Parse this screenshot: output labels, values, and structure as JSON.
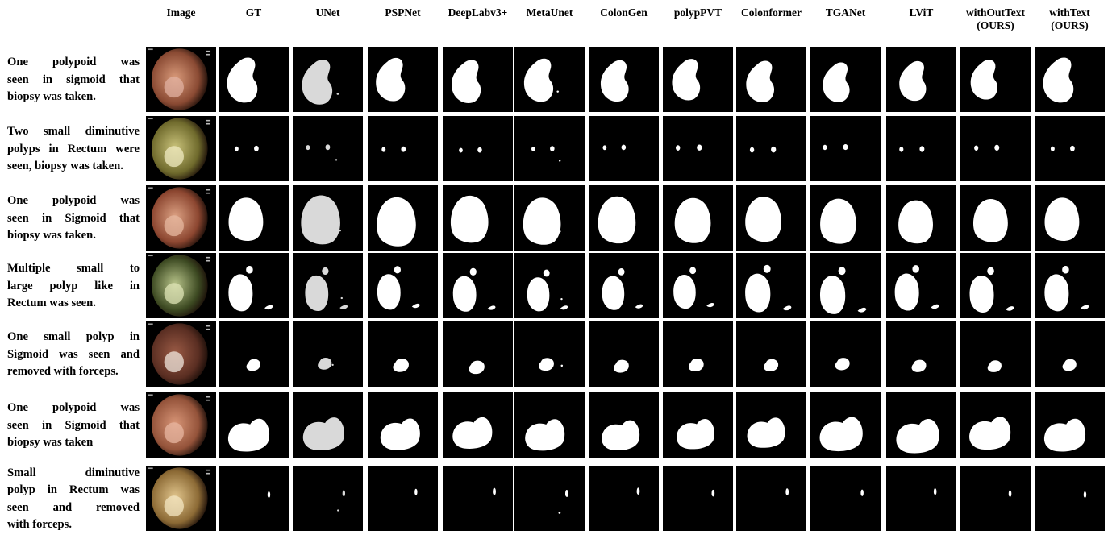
{
  "columns": [
    "Image",
    "GT",
    "UNet",
    "PSPNet",
    "DeepLabv3+",
    "MetaUnet",
    "ColonGen",
    "polypPVT",
    "Colonformer",
    "TGANet",
    "LViT",
    "withOutText (OURS)",
    "withText (OURS)"
  ],
  "column_header_lines": [
    [
      "Image"
    ],
    [
      "GT"
    ],
    [
      "UNet"
    ],
    [
      "PSPNet"
    ],
    [
      "DeepLabv3+"
    ],
    [
      "MetaUnet"
    ],
    [
      "ColonGen"
    ],
    [
      "polypPVT"
    ],
    [
      "Colonformer"
    ],
    [
      "TGANet"
    ],
    [
      "LViT"
    ],
    [
      "withOutText",
      "(OURS)"
    ],
    [
      "withText",
      "(OURS)"
    ]
  ],
  "rows": [
    {
      "caption": "One polypoid was seen in sigmoid that biopsy was taken.",
      "caption_lines": [
        "One polypoid was",
        "seen in sigmoid that",
        "biopsy was taken."
      ],
      "image_tones": {
        "base": "#8a4a33",
        "light": "#d99a7a",
        "lesion": "#e0b0a0"
      },
      "mask_shape": "large-kidney"
    },
    {
      "caption": "Two small diminutive polyps in Rectum were seen, biopsy was taken.",
      "caption_lines": [
        "Two small diminutive",
        "polyps in Rectum were",
        "seen, biopsy was taken."
      ],
      "image_tones": {
        "base": "#6f6a2c",
        "light": "#c9c27a",
        "lesion": "#efe9c0"
      },
      "mask_shape": "two-dots"
    },
    {
      "caption": "One polypoid was seen in Sigmoid that biopsy was taken.",
      "caption_lines": [
        "One polypoid was",
        "seen in Sigmoid that",
        "biopsy was taken."
      ],
      "image_tones": {
        "base": "#8c4630",
        "light": "#dca183",
        "lesion": "#e6b79f"
      },
      "mask_shape": "large-blob"
    },
    {
      "caption": "Multiple small to large polyp like in Rectum was seen.",
      "caption_lines": [
        "Multiple small to",
        "large polyp like in",
        "Rectum was seen."
      ],
      "image_tones": {
        "base": "#3d4a22",
        "light": "#b8c48a",
        "lesion": "#dde3b6"
      },
      "mask_shape": "oval-plus-small"
    },
    {
      "caption": "One small polyp in Sigmoid was seen and removed with forceps.",
      "caption_lines": [
        "One small polyp in",
        "Sigmoid was seen and",
        "removed with forceps."
      ],
      "image_tones": {
        "base": "#5a2e22",
        "light": "#9a5a45",
        "lesion": "#efe6dc"
      },
      "mask_shape": "small-blob"
    },
    {
      "caption": "One polypoid was seen in Sigmoid that biopsy was taken",
      "caption_lines": [
        "One polypoid was",
        "seen in Sigmoid that",
        "biopsy was taken"
      ],
      "image_tones": {
        "base": "#94533a",
        "light": "#d89577",
        "lesion": "#e7b6a0"
      },
      "mask_shape": "wide-blob"
    },
    {
      "caption": "Small diminutive polyp in Rectum was seen and removed with forceps.",
      "caption_lines": [
        "Small diminutive",
        "polyp in Rectum was",
        "seen and removed",
        "with forceps."
      ],
      "image_tones": {
        "base": "#8c6a35",
        "light": "#e1c58c",
        "lesion": "#f3e6c2"
      },
      "mask_shape": "tiny-speck"
    }
  ]
}
